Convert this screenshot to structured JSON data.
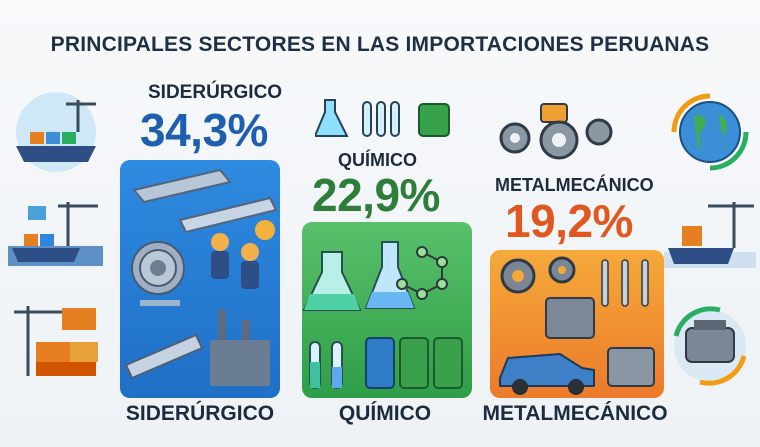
{
  "title": "PRINCIPALES SECTORES EN LAS IMPORTACIONES PERUANAS",
  "chart_data": {
    "type": "bar",
    "title": "PRINCIPALES SECTORES EN LAS IMPORTACIONES PERUANAS",
    "categories": [
      "SIDERÚRGICO",
      "QUÍMICO",
      "METALMECÁNICO"
    ],
    "values": [
      34.3,
      22.9,
      19.2
    ],
    "value_labels": [
      "34,3%",
      "22,9%",
      "19,2%"
    ],
    "top_labels": [
      "SIDERÚRGICO",
      "QUÍMICO",
      "METALMECÁNICO"
    ],
    "bottom_labels": [
      "SIDERÚRGICO",
      "QUÍMICO",
      "METALMECÁNICO"
    ],
    "unit": "%",
    "colors": [
      "#2b7fd6",
      "#2f9e48",
      "#e8702a"
    ]
  },
  "icons": {
    "left": [
      "cargo-ship-crane-icon",
      "port-cranes-ship-icon",
      "containers-crane-icon"
    ],
    "right": [
      "globe-arrows-icon",
      "ship-crane-icon",
      "engine-arrows-icon"
    ],
    "top": [
      "flasks-icon",
      "gears-icon"
    ]
  }
}
